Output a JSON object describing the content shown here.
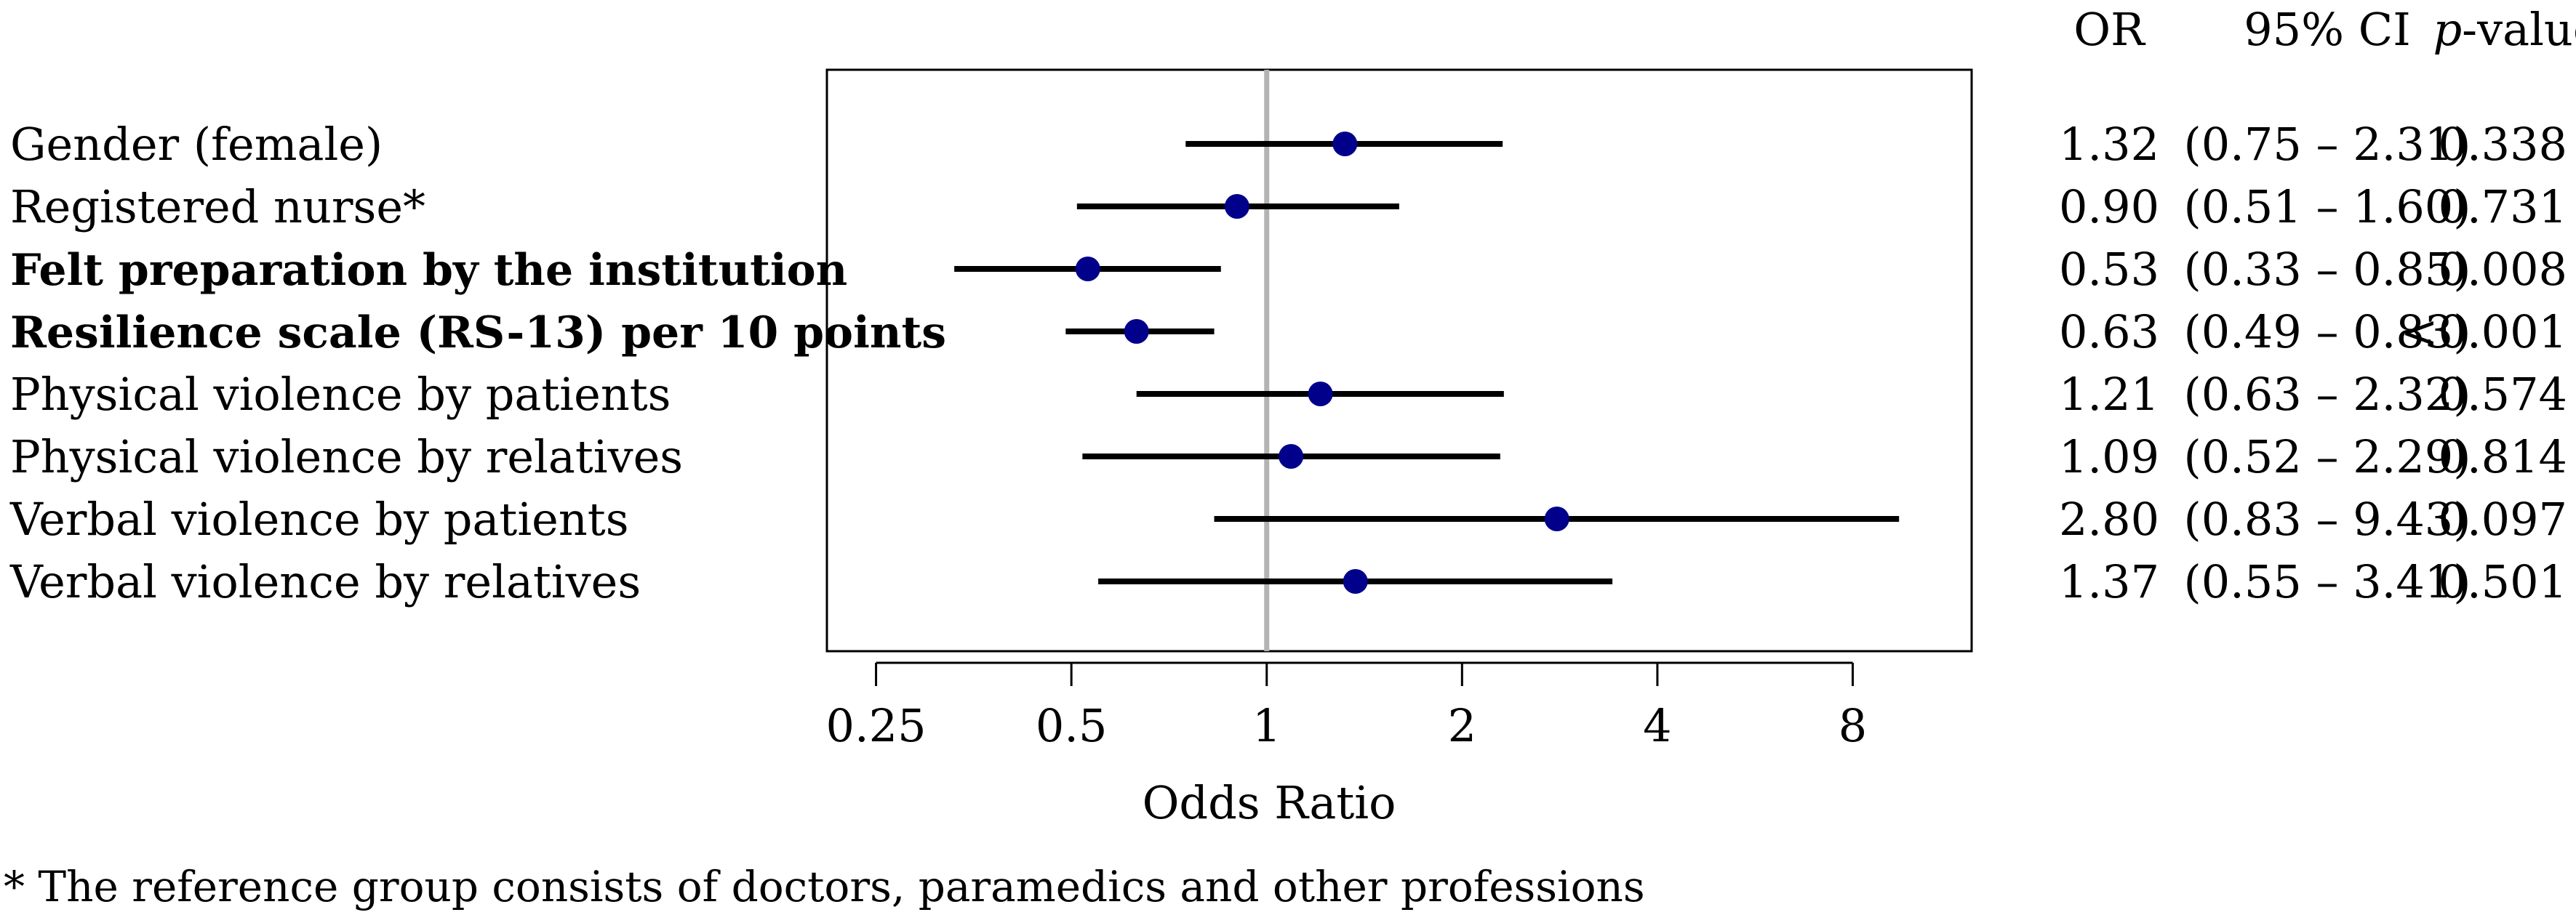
{
  "chart_data": {
    "type": "forest",
    "xlabel": "Odds Ratio",
    "x_scale": "log2",
    "xlim": [
      0.21,
      12.2
    ],
    "xticks": [
      0.25,
      0.5,
      1,
      2,
      4,
      8
    ],
    "xtick_labels": [
      "0.25",
      "0.5",
      "1",
      "2",
      "4",
      "8"
    ],
    "reference_line": 1,
    "columns": {
      "or_header": "OR",
      "ci_header": "95% CI",
      "p_header_italic": "p",
      "p_header_rest": "-value"
    },
    "rows": [
      {
        "label": "Gender (female)",
        "bold": false,
        "or": 1.32,
        "lo": 0.75,
        "hi": 2.31,
        "or_text": "1.32",
        "ci_text": "(0.75 – 2.31)",
        "p_text": "0.338"
      },
      {
        "label": "Registered nurse*",
        "bold": false,
        "or": 0.9,
        "lo": 0.51,
        "hi": 1.6,
        "or_text": "0.90",
        "ci_text": "(0.51 – 1.60)",
        "p_text": "0.731"
      },
      {
        "label": "Felt preparation by the institution",
        "bold": true,
        "or": 0.53,
        "lo": 0.33,
        "hi": 0.85,
        "or_text": "0.53",
        "ci_text": "(0.33 – 0.85)",
        "p_text": "0.008"
      },
      {
        "label": "Resilience scale (RS-13) per 10 points",
        "bold": true,
        "or": 0.63,
        "lo": 0.49,
        "hi": 0.83,
        "or_text": "0.63",
        "ci_text": "(0.49 – 0.83)",
        "p_text": "<0.001"
      },
      {
        "label": "Physical violence by patients",
        "bold": false,
        "or": 1.21,
        "lo": 0.63,
        "hi": 2.32,
        "or_text": "1.21",
        "ci_text": "(0.63 – 2.32)",
        "p_text": "0.574"
      },
      {
        "label": "Physical violence by relatives",
        "bold": false,
        "or": 1.09,
        "lo": 0.52,
        "hi": 2.29,
        "or_text": "1.09",
        "ci_text": "(0.52 – 2.29)",
        "p_text": "0.814"
      },
      {
        "label": "Verbal violence by patients",
        "bold": false,
        "or": 2.8,
        "lo": 0.83,
        "hi": 9.43,
        "or_text": "2.80",
        "ci_text": "(0.83 – 9.43)",
        "p_text": "0.097"
      },
      {
        "label": "Verbal violence by relatives",
        "bold": false,
        "or": 1.37,
        "lo": 0.55,
        "hi": 3.41,
        "or_text": "1.37",
        "ci_text": "(0.55 – 3.41)",
        "p_text": "0.501"
      }
    ],
    "footnote": "* The reference group consists of doctors, paramedics and other professions",
    "colors": {
      "point": "#00008b",
      "line": "#000000",
      "reference": "#b3b3b3"
    }
  }
}
